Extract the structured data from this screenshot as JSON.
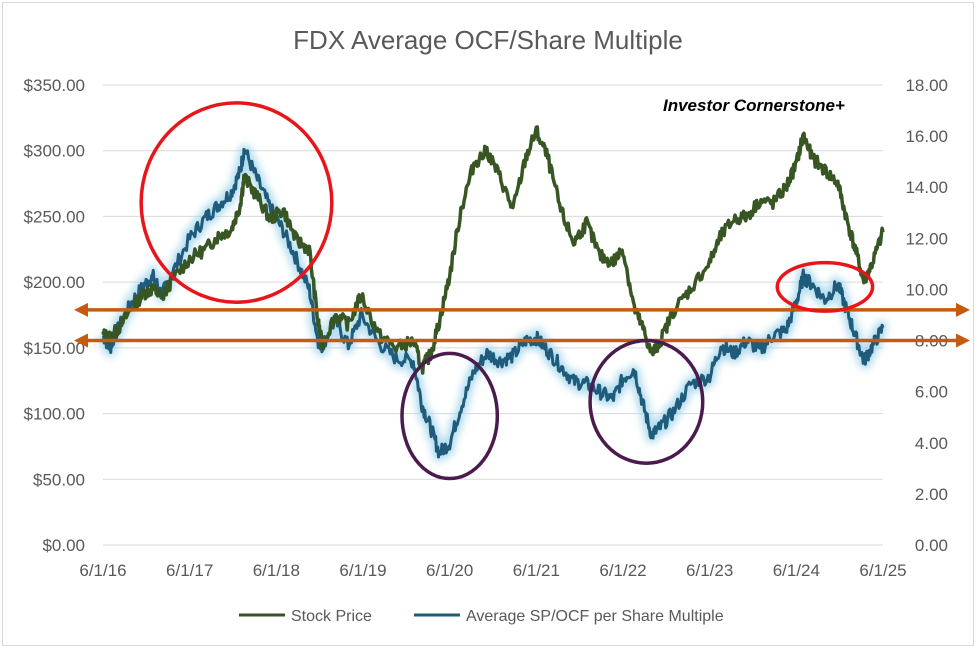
{
  "chart_data": {
    "type": "line",
    "title": "FDX Average OCF/Share Multiple",
    "annotation_text": "Investor Cornerstone+",
    "x_ticks": [
      "6/1/16",
      "6/1/17",
      "6/1/18",
      "6/1/19",
      "6/1/20",
      "6/1/21",
      "6/1/22",
      "6/1/23",
      "6/1/24",
      "6/1/25"
    ],
    "x_range_years": [
      2016.42,
      2025.42
    ],
    "y_left": {
      "ticks": [
        "$0.00",
        "$50.00",
        "$100.00",
        "$150.00",
        "$200.00",
        "$250.00",
        "$300.00",
        "$350.00"
      ],
      "range": [
        0,
        350
      ]
    },
    "y_right": {
      "ticks": [
        "0.00",
        "2.00",
        "4.00",
        "6.00",
        "8.00",
        "10.00",
        "12.00",
        "14.00",
        "16.00",
        "18.00"
      ],
      "range": [
        0,
        18
      ]
    },
    "series": [
      {
        "name": "Stock Price",
        "axis": "left",
        "color": "#375623",
        "x": [
          2016.42,
          2016.5,
          2016.6,
          2016.75,
          2016.9,
          2017.0,
          2017.1,
          2017.2,
          2017.42,
          2017.6,
          2017.75,
          2017.9,
          2018.0,
          2018.05,
          2018.2,
          2018.35,
          2018.5,
          2018.65,
          2018.8,
          2018.9,
          2018.95,
          2019.1,
          2019.25,
          2019.4,
          2019.6,
          2019.8,
          2020.0,
          2020.1,
          2020.2,
          2020.3,
          2020.42,
          2020.55,
          2020.7,
          2020.85,
          2021.0,
          2021.15,
          2021.3,
          2021.42,
          2021.55,
          2021.7,
          2021.85,
          2022.0,
          2022.15,
          2022.3,
          2022.42,
          2022.55,
          2022.65,
          2022.75,
          2022.85,
          2023.0,
          2023.2,
          2023.42,
          2023.55,
          2023.7,
          2023.85,
          2024.0,
          2024.15,
          2024.3,
          2024.42,
          2024.5,
          2024.6,
          2024.75,
          2024.9,
          2025.0,
          2025.1,
          2025.2,
          2025.3,
          2025.42
        ],
        "values": [
          160,
          158,
          165,
          180,
          192,
          195,
          188,
          200,
          218,
          225,
          235,
          240,
          258,
          280,
          265,
          248,
          255,
          232,
          225,
          170,
          152,
          175,
          168,
          190,
          160,
          150,
          155,
          135,
          145,
          170,
          205,
          255,
          290,
          300,
          280,
          255,
          295,
          315,
          295,
          255,
          230,
          245,
          220,
          215,
          225,
          180,
          165,
          145,
          155,
          178,
          195,
          215,
          235,
          248,
          250,
          262,
          260,
          272,
          290,
          312,
          295,
          285,
          275,
          248,
          225,
          200,
          215,
          238
        ]
      },
      {
        "name": "Average SP/OCF per Share Multiple",
        "axis": "right",
        "color": "#1f5b7a",
        "x": [
          2016.42,
          2016.5,
          2016.6,
          2016.75,
          2016.9,
          2017.0,
          2017.1,
          2017.2,
          2017.42,
          2017.6,
          2017.75,
          2017.9,
          2018.0,
          2018.05,
          2018.2,
          2018.35,
          2018.5,
          2018.65,
          2018.8,
          2018.9,
          2018.95,
          2019.1,
          2019.25,
          2019.4,
          2019.6,
          2019.8,
          2020.0,
          2020.1,
          2020.2,
          2020.3,
          2020.42,
          2020.55,
          2020.7,
          2020.85,
          2021.0,
          2021.15,
          2021.3,
          2021.42,
          2021.55,
          2021.7,
          2021.85,
          2022.0,
          2022.15,
          2022.3,
          2022.42,
          2022.55,
          2022.65,
          2022.75,
          2022.85,
          2023.0,
          2023.2,
          2023.42,
          2023.55,
          2023.7,
          2023.85,
          2024.0,
          2024.15,
          2024.3,
          2024.42,
          2024.5,
          2024.6,
          2024.75,
          2024.9,
          2025.0,
          2025.1,
          2025.2,
          2025.3,
          2025.42
        ],
        "values": [
          8.2,
          7.7,
          8.5,
          9.5,
          10.2,
          10.5,
          9.8,
          10.5,
          12.0,
          12.8,
          13.3,
          13.8,
          14.6,
          15.5,
          14.3,
          13.2,
          12.3,
          11.2,
          10.0,
          8.0,
          7.8,
          8.8,
          7.8,
          9.0,
          7.9,
          7.3,
          7.2,
          5.5,
          4.6,
          3.6,
          4.0,
          5.4,
          6.8,
          7.5,
          7.2,
          7.4,
          8.0,
          8.1,
          7.6,
          7.0,
          6.4,
          6.3,
          6.0,
          5.7,
          6.5,
          6.9,
          5.5,
          4.3,
          4.6,
          5.2,
          6.3,
          6.6,
          7.8,
          7.5,
          8.0,
          7.6,
          8.2,
          8.4,
          9.5,
          10.5,
          10.2,
          9.6,
          10.2,
          9.2,
          8.2,
          7.2,
          7.8,
          8.5
        ]
      }
    ],
    "reference_lines": [
      {
        "label": "upper band",
        "axis": "right",
        "value": 9.2,
        "color": "#c55a11"
      },
      {
        "label": "lower band",
        "axis": "right",
        "value": 8.0,
        "color": "#c55a11"
      }
    ],
    "highlight_ellipses": [
      {
        "label": "2017-2018 peak",
        "color": "#e8161b",
        "x_center": 2017.96,
        "y_center_right": 13.4,
        "x_radius_years": 1.1,
        "y_radius_right": 3.9
      },
      {
        "label": "2024 peak",
        "color": "#e8161b",
        "x_center": 2024.75,
        "y_center_right": 10.1,
        "x_radius_years": 0.55,
        "y_radius_right": 0.95
      },
      {
        "label": "2020 trough",
        "color": "#4b1b4e",
        "x_center": 2020.42,
        "y_center_right": 5.05,
        "x_radius_years": 0.55,
        "y_radius_right": 2.45
      },
      {
        "label": "2022 trough",
        "color": "#4b1b4e",
        "x_center": 2022.69,
        "y_center_right": 5.6,
        "x_radius_years": 0.65,
        "y_radius_right": 2.4
      }
    ],
    "legend": {
      "position": "bottom",
      "entries": [
        "Stock Price",
        "Average SP/OCF per Share Multiple"
      ]
    },
    "grid": true
  }
}
